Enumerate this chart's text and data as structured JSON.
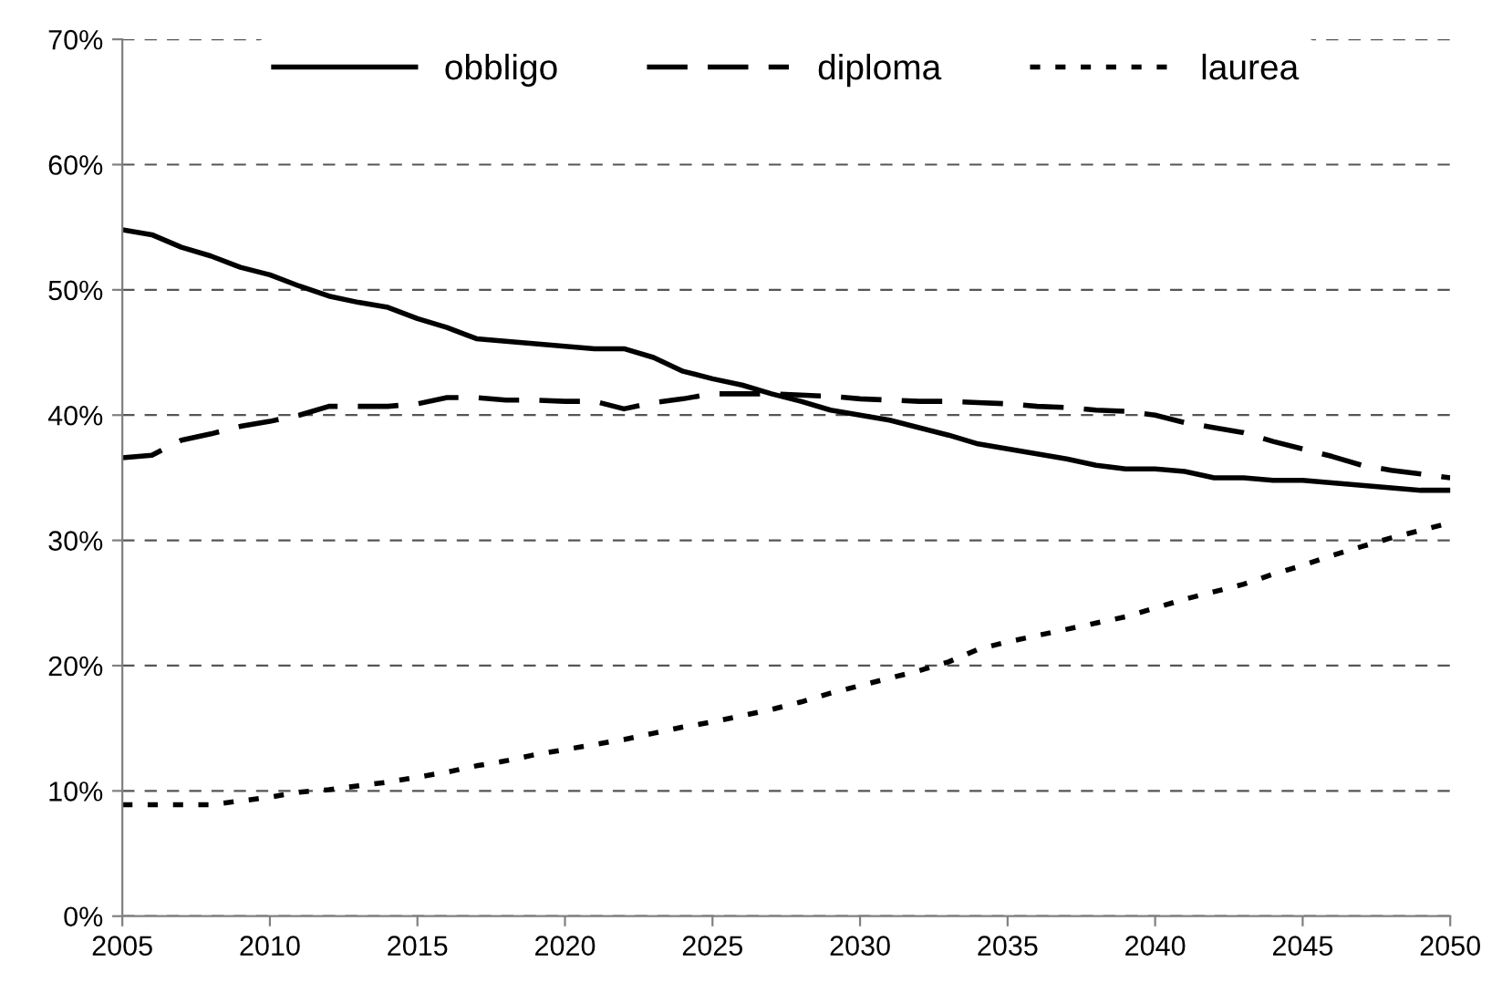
{
  "chart_data": {
    "type": "line",
    "x": [
      2005,
      2006,
      2007,
      2008,
      2009,
      2010,
      2011,
      2012,
      2013,
      2014,
      2015,
      2016,
      2017,
      2018,
      2019,
      2020,
      2021,
      2022,
      2023,
      2024,
      2025,
      2026,
      2027,
      2028,
      2029,
      2030,
      2031,
      2032,
      2033,
      2034,
      2035,
      2036,
      2037,
      2038,
      2039,
      2040,
      2041,
      2042,
      2043,
      2044,
      2045,
      2046,
      2047,
      2048,
      2049,
      2050
    ],
    "series": [
      {
        "name": "obbligo",
        "color": "#000000",
        "line_style": "solid",
        "values": [
          54.8,
          54.4,
          53.4,
          52.7,
          51.8,
          51.2,
          50.3,
          49.5,
          49.0,
          48.6,
          47.7,
          47.0,
          46.1,
          45.9,
          45.7,
          45.5,
          45.3,
          45.3,
          44.6,
          43.5,
          42.9,
          42.4,
          41.7,
          41.1,
          40.4,
          40.0,
          39.6,
          39.0,
          38.4,
          37.7,
          37.3,
          36.9,
          36.5,
          36.0,
          35.7,
          35.7,
          35.5,
          35.0,
          35.0,
          34.8,
          34.8,
          34.6,
          34.4,
          34.2,
          34.0,
          34.0
        ]
      },
      {
        "name": "diploma",
        "color": "#000000",
        "line_style": "dashed",
        "values": [
          36.6,
          36.8,
          38.0,
          38.5,
          39.1,
          39.5,
          40.0,
          40.7,
          40.7,
          40.7,
          40.9,
          41.4,
          41.4,
          41.2,
          41.2,
          41.1,
          41.1,
          40.5,
          41.0,
          41.3,
          41.7,
          41.7,
          41.7,
          41.6,
          41.5,
          41.3,
          41.2,
          41.1,
          41.1,
          41.0,
          40.9,
          40.7,
          40.6,
          40.4,
          40.3,
          40.0,
          39.4,
          39.0,
          38.6,
          37.9,
          37.3,
          36.7,
          36.0,
          35.6,
          35.3,
          35.0
        ]
      },
      {
        "name": "laurea",
        "color": "#000000",
        "line_style": "dotted",
        "values": [
          8.9,
          8.9,
          8.9,
          8.9,
          9.2,
          9.5,
          9.9,
          10.1,
          10.4,
          10.7,
          11.1,
          11.5,
          12.0,
          12.4,
          12.9,
          13.3,
          13.7,
          14.1,
          14.6,
          15.1,
          15.5,
          16.0,
          16.5,
          17.1,
          17.8,
          18.4,
          19.0,
          19.6,
          20.3,
          21.3,
          21.9,
          22.4,
          22.9,
          23.4,
          23.9,
          24.6,
          25.3,
          25.9,
          26.5,
          27.3,
          28.0,
          28.8,
          29.5,
          30.2,
          30.8,
          31.4
        ]
      }
    ],
    "xlim": [
      2005,
      2050
    ],
    "xticks": [
      2005,
      2010,
      2015,
      2020,
      2025,
      2030,
      2035,
      2040,
      2045,
      2050
    ],
    "ylim": [
      0,
      70
    ],
    "yticks": [
      {
        "value": 0,
        "label": "0%"
      },
      {
        "value": 10,
        "label": "10%"
      },
      {
        "value": 20,
        "label": "20%"
      },
      {
        "value": 30,
        "label": "30%"
      },
      {
        "value": 40,
        "label": "40%"
      },
      {
        "value": 50,
        "label": "50%"
      },
      {
        "value": 60,
        "label": "60%"
      },
      {
        "value": 70,
        "label": "70%"
      }
    ],
    "grid": "y",
    "legend": "top",
    "marker": "none"
  }
}
